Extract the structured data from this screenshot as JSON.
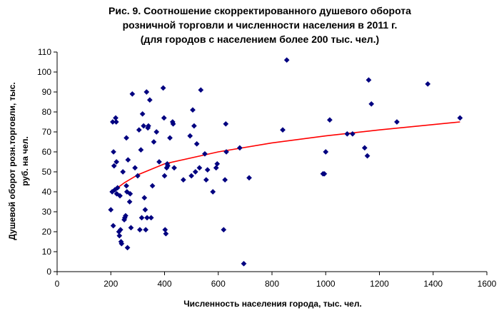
{
  "chart_data": {
    "type": "scatter",
    "title_lines": [
      "Рис. 9. Соотношение скорректированного душевого оборота",
      "розничной торговли и численности населения в 2011 г.",
      "(для городов с населением более 200 тыс. чел.)"
    ],
    "xlabel": "Численность населения города, тыс. чел.",
    "ylabel_lines": [
      "Душевой оборот розн.торговли, тыс.",
      "руб. на чел."
    ],
    "xlim": [
      0,
      1600
    ],
    "ylim": [
      0,
      110
    ],
    "xticks": [
      "0",
      "200",
      "400",
      "600",
      "800",
      "1000",
      "1200",
      "1400",
      "1600"
    ],
    "yticks": [
      "0",
      "10",
      "20",
      "30",
      "40",
      "50",
      "60",
      "70",
      "80",
      "90",
      "100",
      "110"
    ],
    "grid": false,
    "marker_color": "#000080",
    "trend_color": "#ff0000",
    "trend": "logarithmic",
    "trend_points": [
      [
        200,
        39.5
      ],
      [
        250,
        44.5
      ],
      [
        300,
        48.5
      ],
      [
        400,
        54.0
      ],
      [
        600,
        60.0
      ],
      [
        800,
        64.5
      ],
      [
        1000,
        68.0
      ],
      [
        1200,
        71.0
      ],
      [
        1500,
        75.0
      ]
    ],
    "points": [
      [
        200,
        31
      ],
      [
        205,
        40
      ],
      [
        207,
        75
      ],
      [
        209,
        23
      ],
      [
        210,
        60
      ],
      [
        212,
        53
      ],
      [
        215,
        41
      ],
      [
        218,
        77
      ],
      [
        220,
        75
      ],
      [
        221,
        55
      ],
      [
        222,
        39
      ],
      [
        225,
        42
      ],
      [
        230,
        20
      ],
      [
        232,
        18
      ],
      [
        234,
        38
      ],
      [
        236,
        21
      ],
      [
        238,
        15
      ],
      [
        240,
        14
      ],
      [
        245,
        50
      ],
      [
        250,
        26
      ],
      [
        252,
        27
      ],
      [
        255,
        28
      ],
      [
        258,
        67
      ],
      [
        258,
        43
      ],
      [
        260,
        40
      ],
      [
        262,
        12
      ],
      [
        264,
        56
      ],
      [
        270,
        35
      ],
      [
        272,
        39
      ],
      [
        275,
        22
      ],
      [
        280,
        89
      ],
      [
        290,
        52
      ],
      [
        300,
        48
      ],
      [
        305,
        71
      ],
      [
        308,
        21
      ],
      [
        312,
        61
      ],
      [
        315,
        27
      ],
      [
        318,
        79
      ],
      [
        322,
        73
      ],
      [
        325,
        37
      ],
      [
        328,
        31
      ],
      [
        330,
        21
      ],
      [
        333,
        90
      ],
      [
        335,
        27
      ],
      [
        338,
        72
      ],
      [
        340,
        73
      ],
      [
        345,
        86
      ],
      [
        350,
        27
      ],
      [
        355,
        43
      ],
      [
        360,
        65
      ],
      [
        370,
        70
      ],
      [
        380,
        55
      ],
      [
        395,
        92
      ],
      [
        398,
        77
      ],
      [
        400,
        48
      ],
      [
        402,
        21
      ],
      [
        405,
        19
      ],
      [
        408,
        52
      ],
      [
        410,
        54
      ],
      [
        412,
        53
      ],
      [
        420,
        67
      ],
      [
        430,
        75
      ],
      [
        432,
        74
      ],
      [
        436,
        52
      ],
      [
        470,
        46
      ],
      [
        495,
        68
      ],
      [
        500,
        48
      ],
      [
        505,
        81
      ],
      [
        510,
        73
      ],
      [
        515,
        50
      ],
      [
        520,
        64
      ],
      [
        530,
        52
      ],
      [
        535,
        91
      ],
      [
        550,
        59
      ],
      [
        555,
        46
      ],
      [
        560,
        51
      ],
      [
        580,
        40
      ],
      [
        592,
        52
      ],
      [
        596,
        54
      ],
      [
        620,
        21
      ],
      [
        625,
        46
      ],
      [
        628,
        74
      ],
      [
        630,
        60
      ],
      [
        680,
        62
      ],
      [
        695,
        4
      ],
      [
        715,
        47
      ],
      [
        840,
        71
      ],
      [
        855,
        106
      ],
      [
        990,
        49
      ],
      [
        995,
        49
      ],
      [
        1000,
        60
      ],
      [
        1015,
        76
      ],
      [
        1080,
        69
      ],
      [
        1100,
        69
      ],
      [
        1145,
        62
      ],
      [
        1155,
        58
      ],
      [
        1160,
        96
      ],
      [
        1170,
        84
      ],
      [
        1265,
        75
      ],
      [
        1380,
        94
      ],
      [
        1500,
        77
      ]
    ]
  }
}
